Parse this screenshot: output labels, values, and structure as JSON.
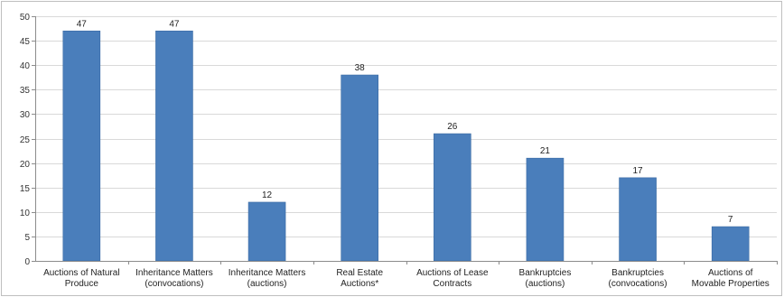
{
  "colors": {
    "bar": "#4a7ebb",
    "bar_edge": "#3a6aa3",
    "grid": "#d9d9d9",
    "axis": "#8c8c8c",
    "frame": "#bfbfbf"
  },
  "chart_data": {
    "type": "bar",
    "title": "",
    "xlabel": "",
    "ylabel": "",
    "ylim": [
      0,
      50
    ],
    "yticks": [
      0,
      5,
      10,
      15,
      20,
      25,
      30,
      35,
      40,
      45,
      50
    ],
    "grid": true,
    "categories": [
      [
        "Auctions of Natural",
        "Produce"
      ],
      [
        "Inheritance Matters",
        "(convocations)"
      ],
      [
        "Inheritance Matters",
        "(auctions)"
      ],
      [
        "Real Estate",
        "Auctions*"
      ],
      [
        "Auctions of Lease",
        "Contracts"
      ],
      [
        "Bankruptcies",
        "(auctions)"
      ],
      [
        "Bankruptcies",
        "(convocations)"
      ],
      [
        "Auctions of",
        "Movable Properties"
      ]
    ],
    "values": [
      47,
      47,
      12,
      38,
      26,
      21,
      17,
      7
    ],
    "data_labels": [
      "47",
      "47",
      "12",
      "38",
      "26",
      "21",
      "17",
      "7"
    ]
  }
}
